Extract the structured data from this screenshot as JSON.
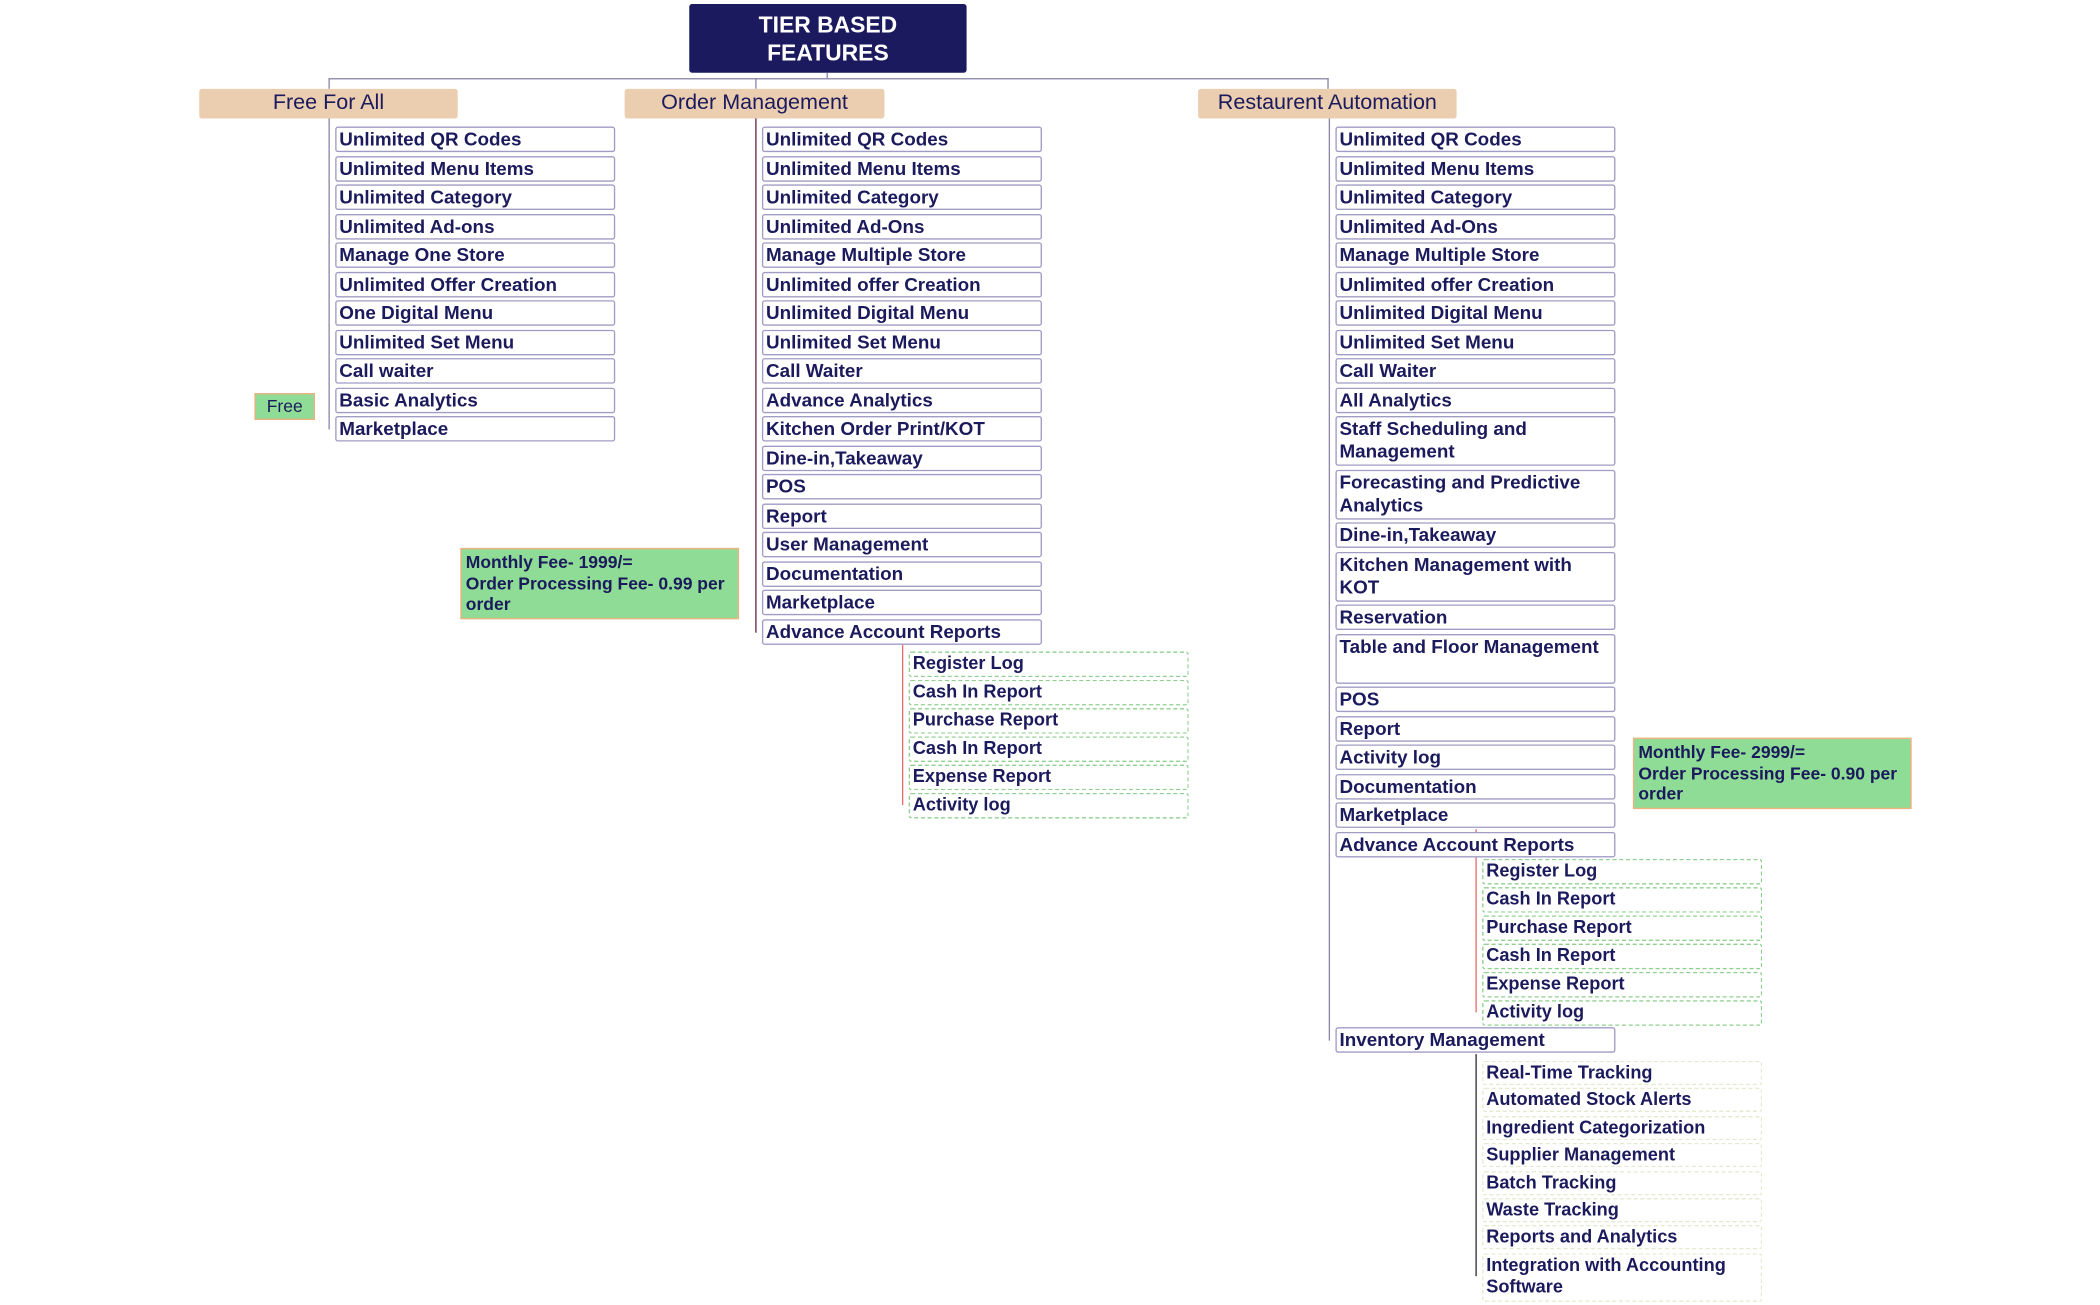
{
  "root": {
    "title": "TIER BASED FEATURES"
  },
  "tiers": [
    {
      "name": "Free For All",
      "price_badge": "Free",
      "items": [
        "Unlimited QR Codes",
        "Unlimited Menu Items",
        "Unlimited Category",
        "Unlimited Ad-ons",
        "Manage One Store",
        "Unlimited Offer Creation",
        "One Digital Menu",
        "Unlimited Set Menu",
        "Call waiter",
        "Basic Analytics",
        "Marketplace"
      ]
    },
    {
      "name": "Order Management",
      "fee_note": "Monthly Fee- 1999/=\nOrder Processing Fee- 0.99 per order",
      "items": [
        "Unlimited QR Codes",
        "Unlimited Menu Items",
        "Unlimited Category",
        "Unlimited Ad-Ons",
        "Manage Multiple Store",
        "Unlimited offer Creation",
        "Unlimited Digital Menu",
        "Unlimited Set Menu",
        "Call Waiter",
        "Advance Analytics",
        "Kitchen Order Print/KOT",
        "Dine-in,Takeaway",
        "POS",
        "Report",
        "User Management",
        "Documentation",
        "Marketplace",
        "Advance Account Reports"
      ],
      "account_reports": [
        "Register Log",
        "Cash In Report",
        "Purchase Report",
        "Cash In Report",
        "Expense Report",
        "Activity log"
      ]
    },
    {
      "name": "Restaurent Automation",
      "fee_note": "Monthly Fee- 2999/=\nOrder Processing Fee- 0.90 per order",
      "items": [
        "Unlimited QR Codes",
        "Unlimited Menu Items",
        "Unlimited Category",
        "Unlimited Ad-Ons",
        "Manage Multiple Store",
        "Unlimited offer Creation",
        "Unlimited Digital Menu",
        "Unlimited Set Menu",
        "Call Waiter",
        "All Analytics",
        "Staff Scheduling and Management",
        "Forecasting and Predictive Analytics",
        "Dine-in,Takeaway",
        "Kitchen Management with KOT",
        "Reservation",
        "Table and Floor Management",
        "POS",
        "Report",
        "Activity log",
        "Documentation",
        "Marketplace",
        "Advance Account Reports"
      ],
      "account_reports": [
        "Register Log",
        "Cash In Report",
        "Purchase Report",
        "Cash In Report",
        "Expense Report",
        "Activity log"
      ],
      "inventory_label": "Inventory Management",
      "inventory": [
        "Real-Time Tracking",
        "Automated Stock Alerts",
        "Ingredient Categorization",
        "Supplier Management",
        "Batch Tracking",
        "Waste Tracking",
        "Reports and Analytics",
        "Integration with Accounting Software"
      ]
    }
  ],
  "colors": {
    "root_bg": "#1b1a5e",
    "header_bg": "#ebcdb0",
    "price_bg": "#8edc95",
    "text": "#1b1a5c"
  }
}
